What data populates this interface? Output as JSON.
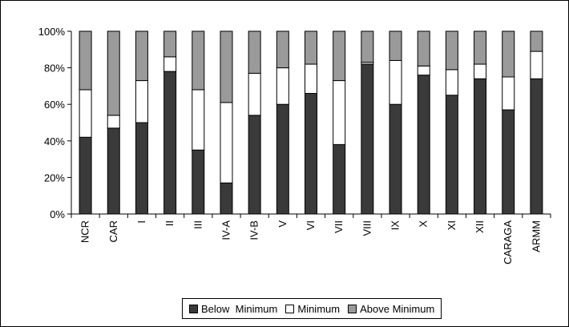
{
  "chart_data": {
    "type": "bar",
    "stacked": true,
    "percent_stacked": true,
    "categories": [
      "NCR",
      "CAR",
      "I",
      "II",
      "III",
      "IV-A",
      "IV-B",
      "V",
      "VI",
      "VII",
      "VIII",
      "IX",
      "X",
      "XI",
      "XII",
      "CARAGA",
      "ARMM"
    ],
    "series": [
      {
        "name": "Below  Minimum",
        "color": "#3a3a3a",
        "values": [
          42,
          47,
          50,
          78,
          35,
          17,
          54,
          60,
          66,
          38,
          82,
          60,
          76,
          65,
          74,
          57,
          74
        ]
      },
      {
        "name": "Minimum",
        "color": "#ffffff",
        "values": [
          26,
          7,
          23,
          8,
          33,
          44,
          23,
          20,
          16,
          35,
          1,
          24,
          5,
          14,
          8,
          18,
          15
        ]
      },
      {
        "name": "Above Minimum",
        "color": "#9a9a9a",
        "values": [
          32,
          46,
          27,
          14,
          32,
          39,
          23,
          20,
          18,
          27,
          17,
          16,
          19,
          21,
          18,
          25,
          11
        ]
      }
    ],
    "yticks": [
      "0%",
      "20%",
      "40%",
      "60%",
      "80%",
      "100%"
    ],
    "ylim": [
      0,
      100
    ],
    "title": "",
    "xlabel": "",
    "ylabel": "",
    "grid": false,
    "legend_position": "bottom"
  }
}
